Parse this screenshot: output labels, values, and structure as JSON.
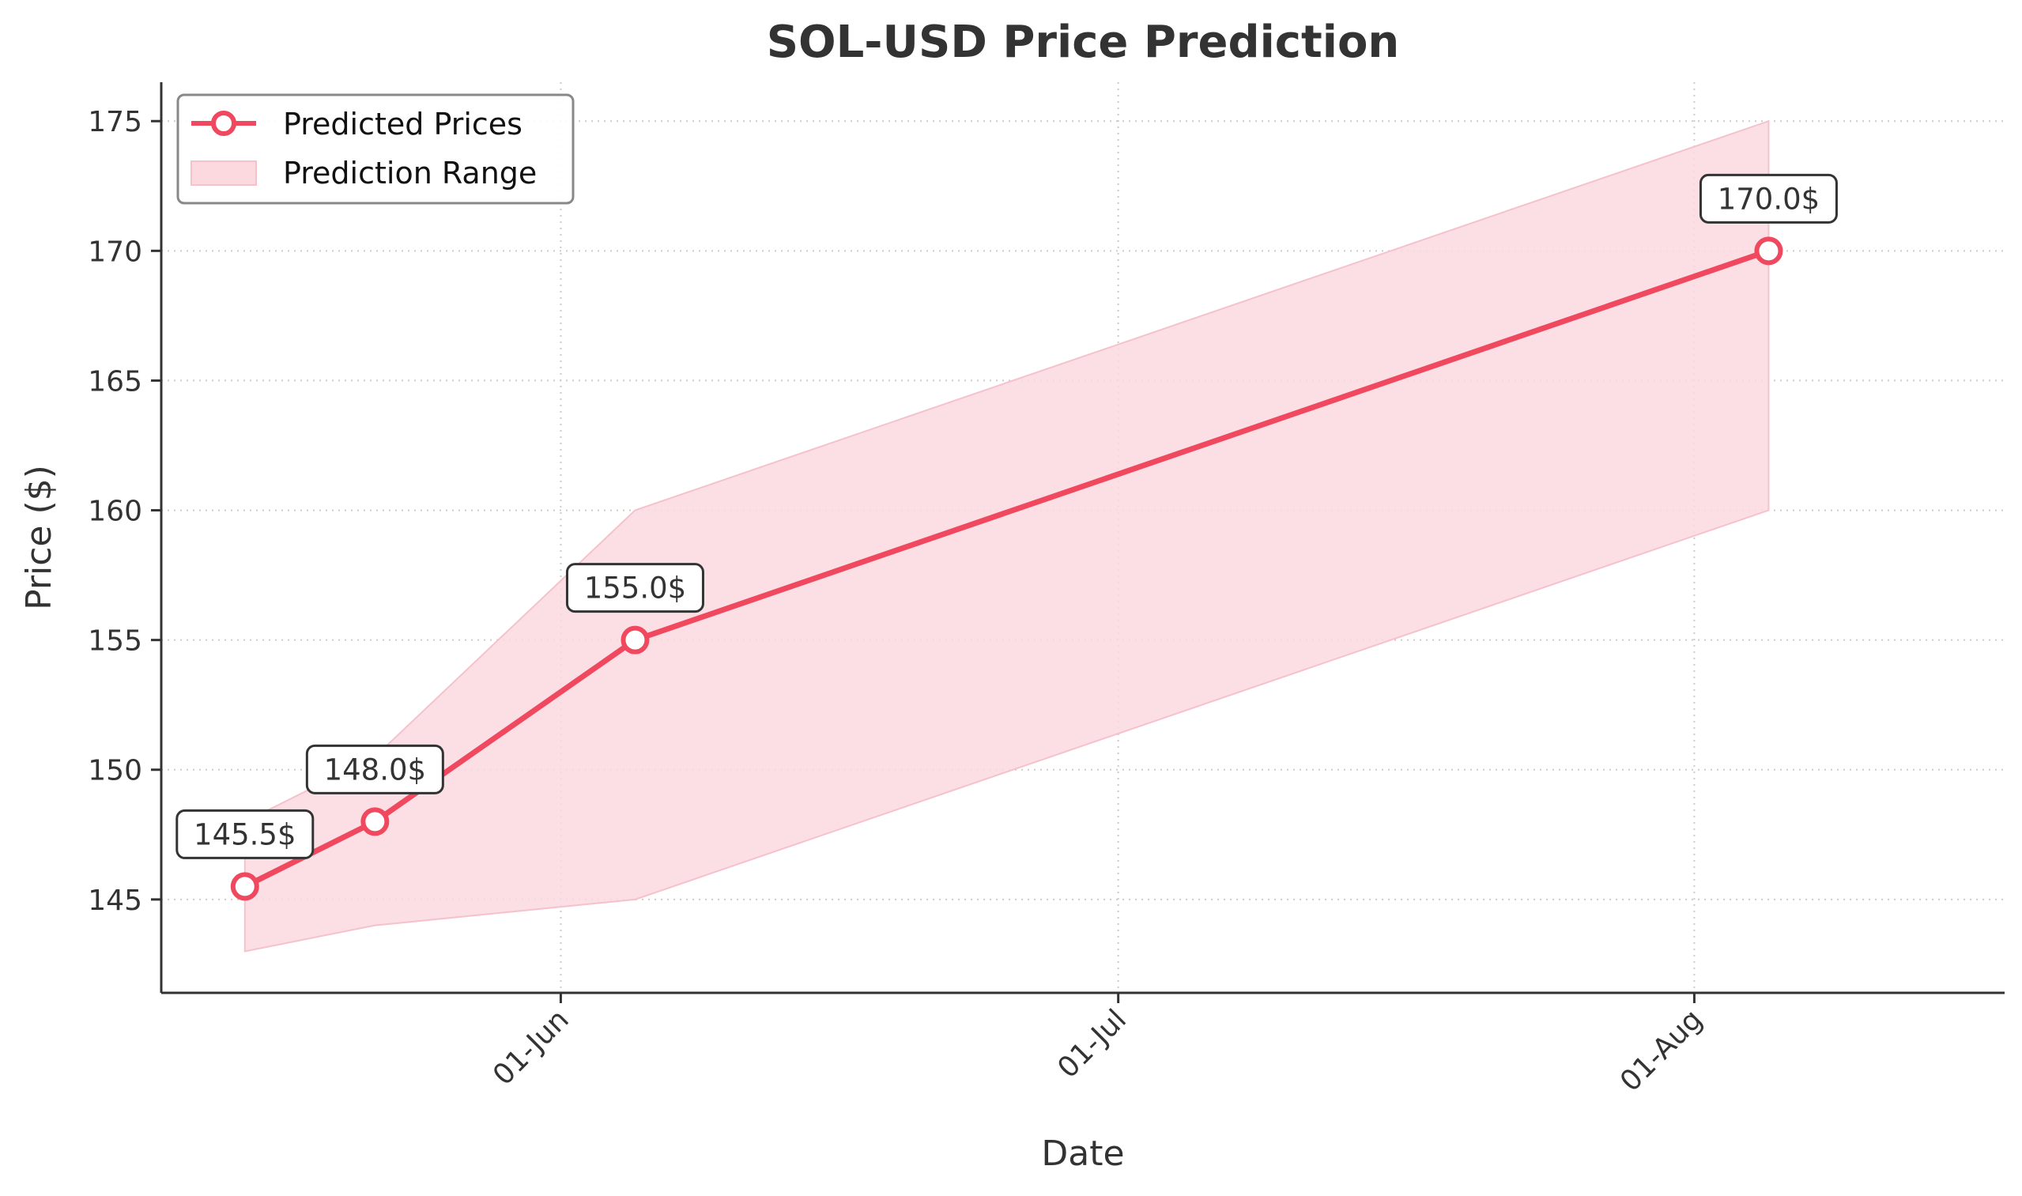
{
  "chart_data": {
    "type": "line",
    "title": "SOL-USD Price Prediction",
    "xlabel": "Date",
    "ylabel": "Price ($)",
    "ylim": [
      141.4,
      176.5
    ],
    "yticks": [
      145,
      150,
      155,
      160,
      165,
      170,
      175
    ],
    "xlim_day_of_year": [
      130.5,
      229.7
    ],
    "xticks": [
      {
        "day_of_year": 152,
        "label": "01-Jun"
      },
      {
        "day_of_year": 182,
        "label": "01-Jul"
      },
      {
        "day_of_year": 213,
        "label": "01-Aug"
      }
    ],
    "grid": true,
    "legend_position": "top-left",
    "series": [
      {
        "name": "Predicted Prices",
        "color": "#f0485f",
        "x_day_of_year": [
          135,
          142,
          156,
          217
        ],
        "values": [
          145.5,
          148.0,
          155.0,
          170.0
        ],
        "labels": [
          "145.5$",
          "148.0$",
          "155.0$",
          "170.0$"
        ]
      }
    ],
    "range": {
      "name": "Prediction Range",
      "color": "#fcd9df",
      "x_day_of_year": [
        135,
        142,
        156,
        217
      ],
      "lower": [
        143.0,
        144.0,
        145.0,
        160.0
      ],
      "upper": [
        148.0,
        150.5,
        160.0,
        175.0
      ]
    }
  }
}
